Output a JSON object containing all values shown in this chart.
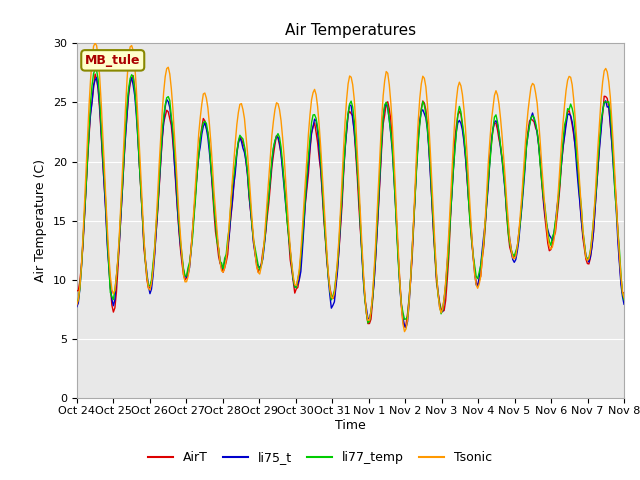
{
  "title": "Air Temperatures",
  "ylabel": "Air Temperature (C)",
  "xlabel": "Time",
  "ylim": [
    0,
    30
  ],
  "yticks": [
    0,
    5,
    10,
    15,
    20,
    25,
    30
  ],
  "bg_color": "#e8e8e8",
  "fig_color": "#ffffff",
  "label_box": "MB_tule",
  "label_box_bg": "#ffffcc",
  "label_box_fg": "#aa0000",
  "label_box_edge": "#888800",
  "x_tick_labels": [
    "Oct 24",
    "Oct 25",
    "Oct 26",
    "Oct 27",
    "Oct 28",
    "Oct 29",
    "Oct 30",
    "Oct 31",
    "Nov 1",
    "Nov 2",
    "Nov 3",
    "Nov 4",
    "Nov 5",
    "Nov 6",
    "Nov 7",
    "Nov 8"
  ],
  "series_colors": [
    "#dd0000",
    "#0000cc",
    "#00cc00",
    "#ff9900"
  ],
  "series_names": [
    "AirT",
    "li75_t",
    "li77_temp",
    "Tsonic"
  ],
  "series_linewidths": [
    1.0,
    1.0,
    1.0,
    1.0
  ],
  "grid_color": "#ffffff",
  "title_fontsize": 11,
  "axis_fontsize": 9,
  "tick_fontsize": 8
}
